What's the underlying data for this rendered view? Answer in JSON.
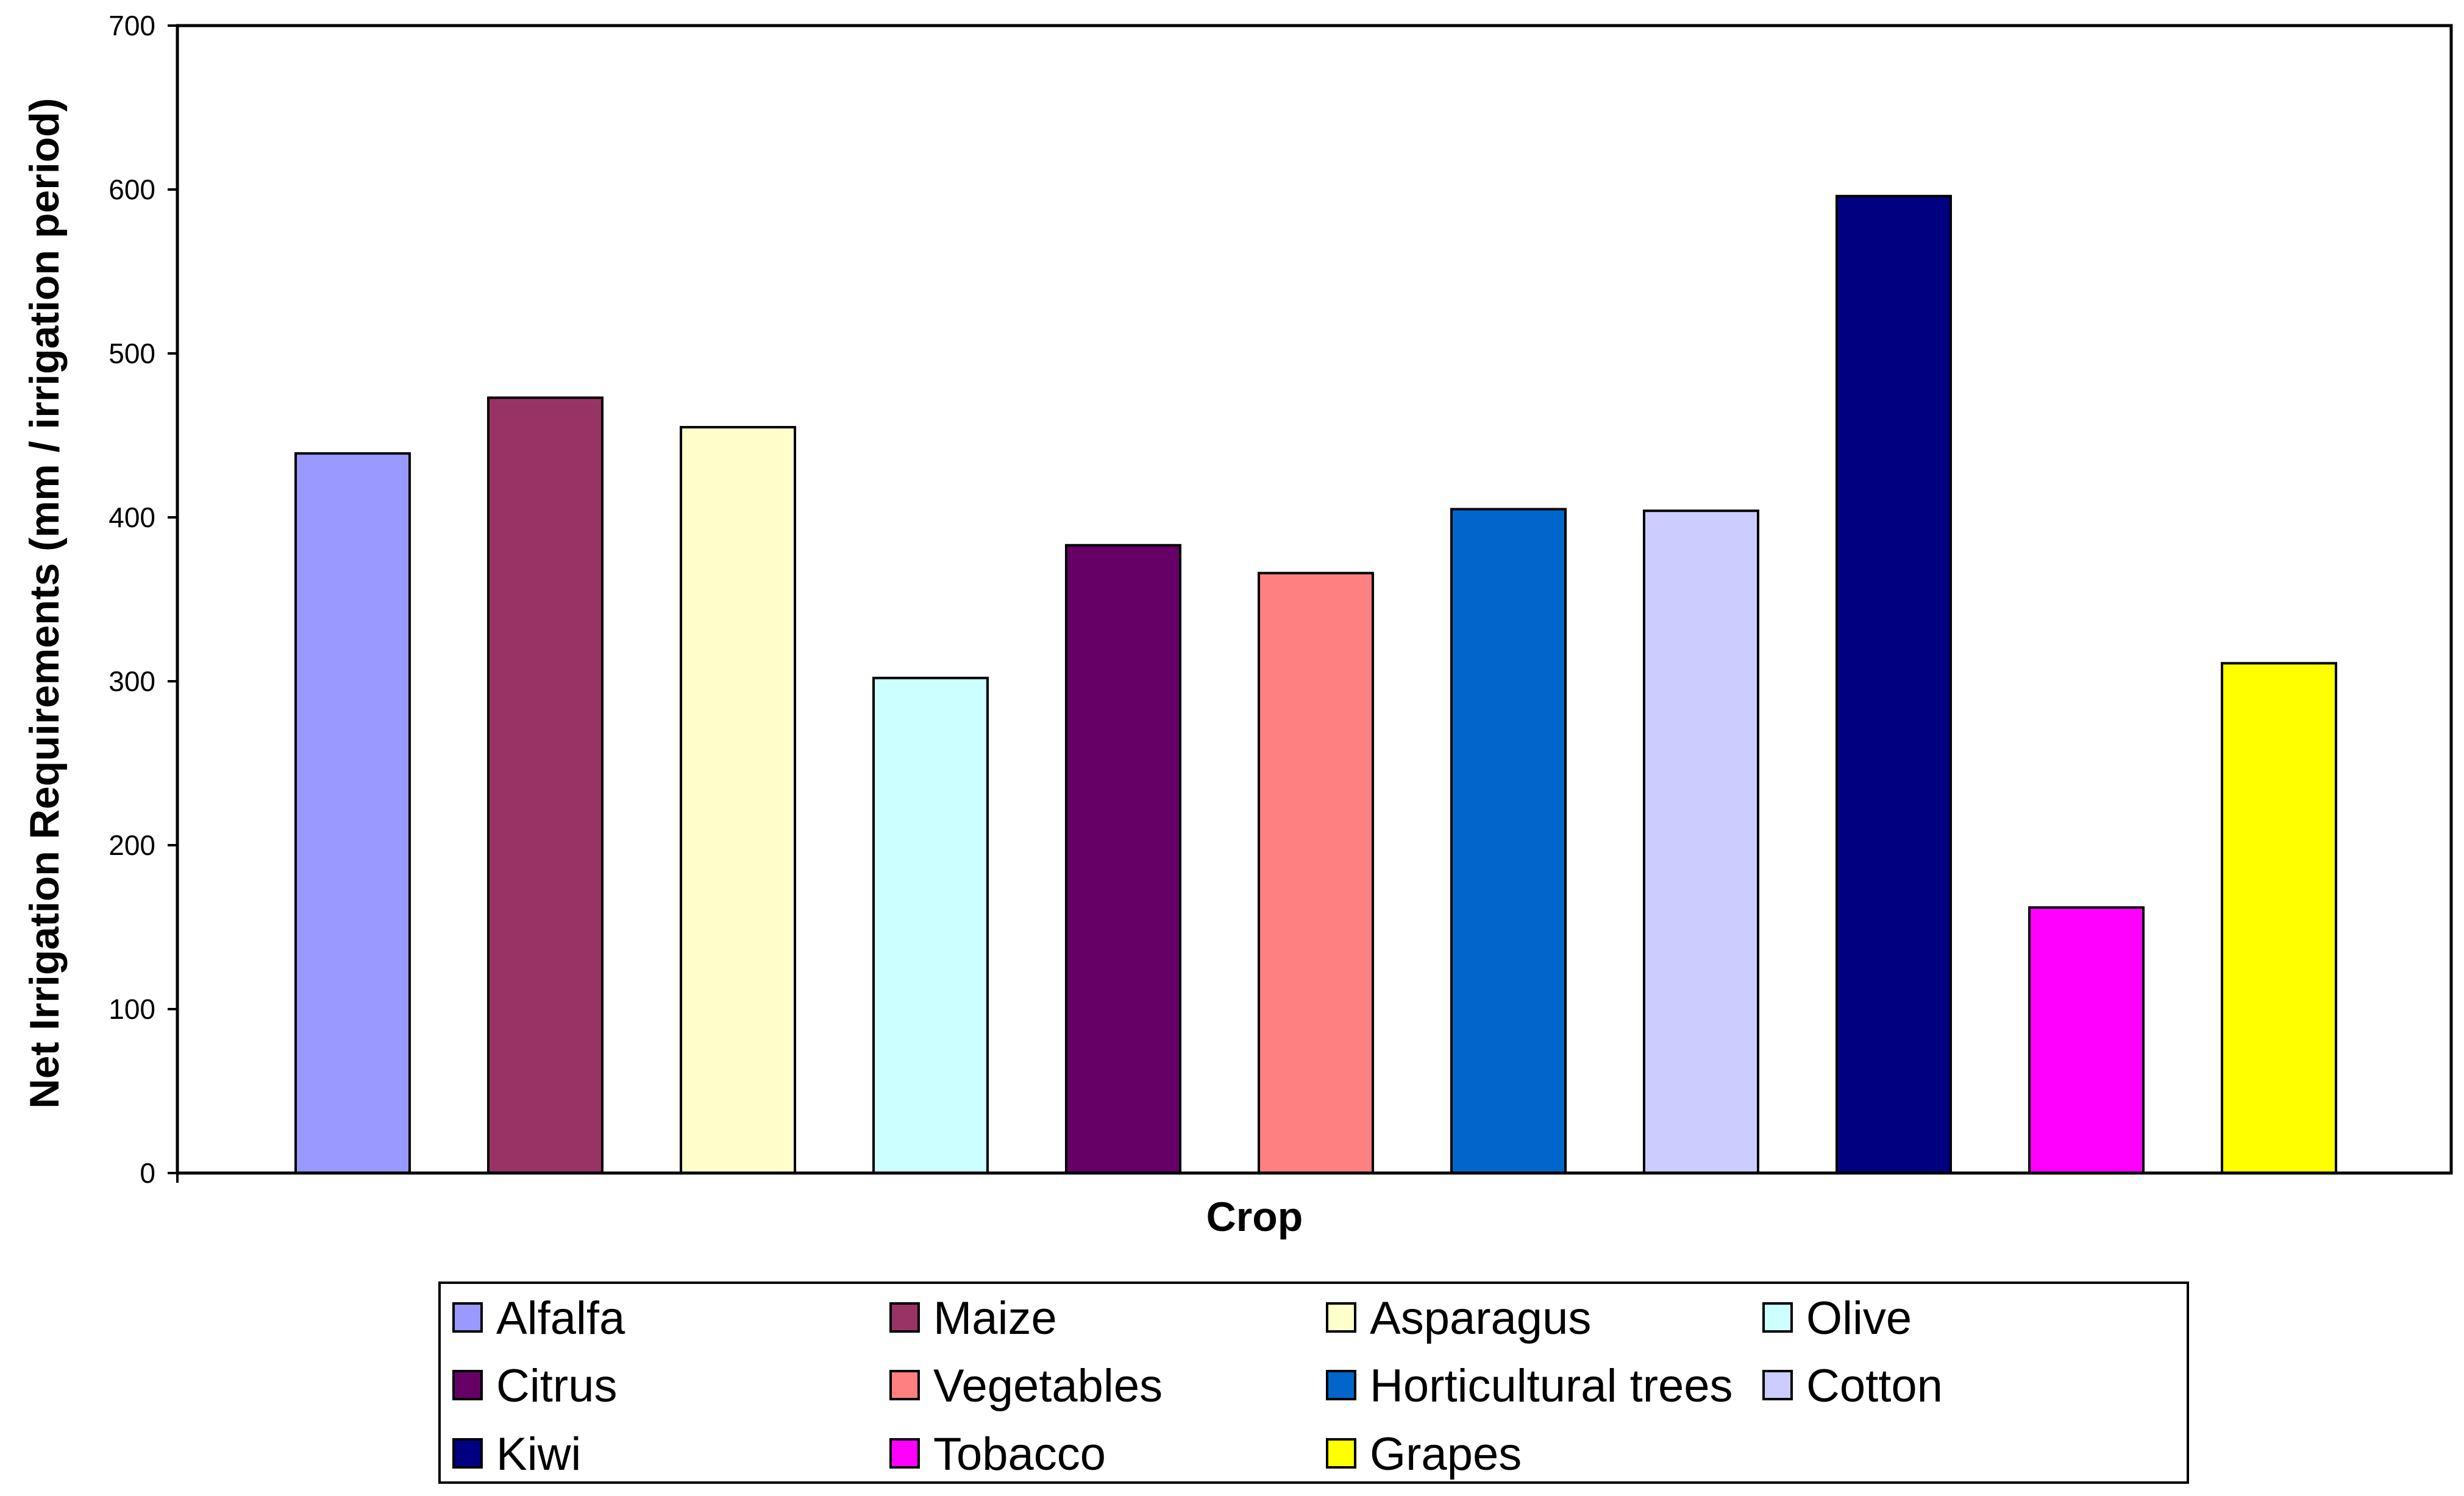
{
  "chart_data": {
    "type": "bar",
    "title": "",
    "xlabel": "Crop",
    "ylabel": "Net Irrigation Requirements (mm / irrigation period)",
    "ylim": [
      0,
      700
    ],
    "yticks": [
      0,
      100,
      200,
      300,
      400,
      500,
      600,
      700
    ],
    "grid": false,
    "legend_position": "bottom",
    "series": [
      {
        "name": "Alfalfa",
        "value": 439,
        "color": "#9999ff"
      },
      {
        "name": "Maize",
        "value": 473,
        "color": "#993366"
      },
      {
        "name": "Asparagus",
        "value": 455,
        "color": "#ffffcc"
      },
      {
        "name": "Olive",
        "value": 302,
        "color": "#ccffff"
      },
      {
        "name": "Citrus",
        "value": 383,
        "color": "#660066"
      },
      {
        "name": "Vegetables",
        "value": 366,
        "color": "#ff8080"
      },
      {
        "name": "Horticultural trees",
        "value": 405,
        "color": "#0066cc"
      },
      {
        "name": "Cotton",
        "value": 404,
        "color": "#ccccff"
      },
      {
        "name": "Kiwi",
        "value": 596,
        "color": "#000080"
      },
      {
        "name": "Tobacco",
        "value": 162,
        "color": "#ff00ff"
      },
      {
        "name": "Grapes",
        "value": 311,
        "color": "#ffff00"
      }
    ]
  }
}
